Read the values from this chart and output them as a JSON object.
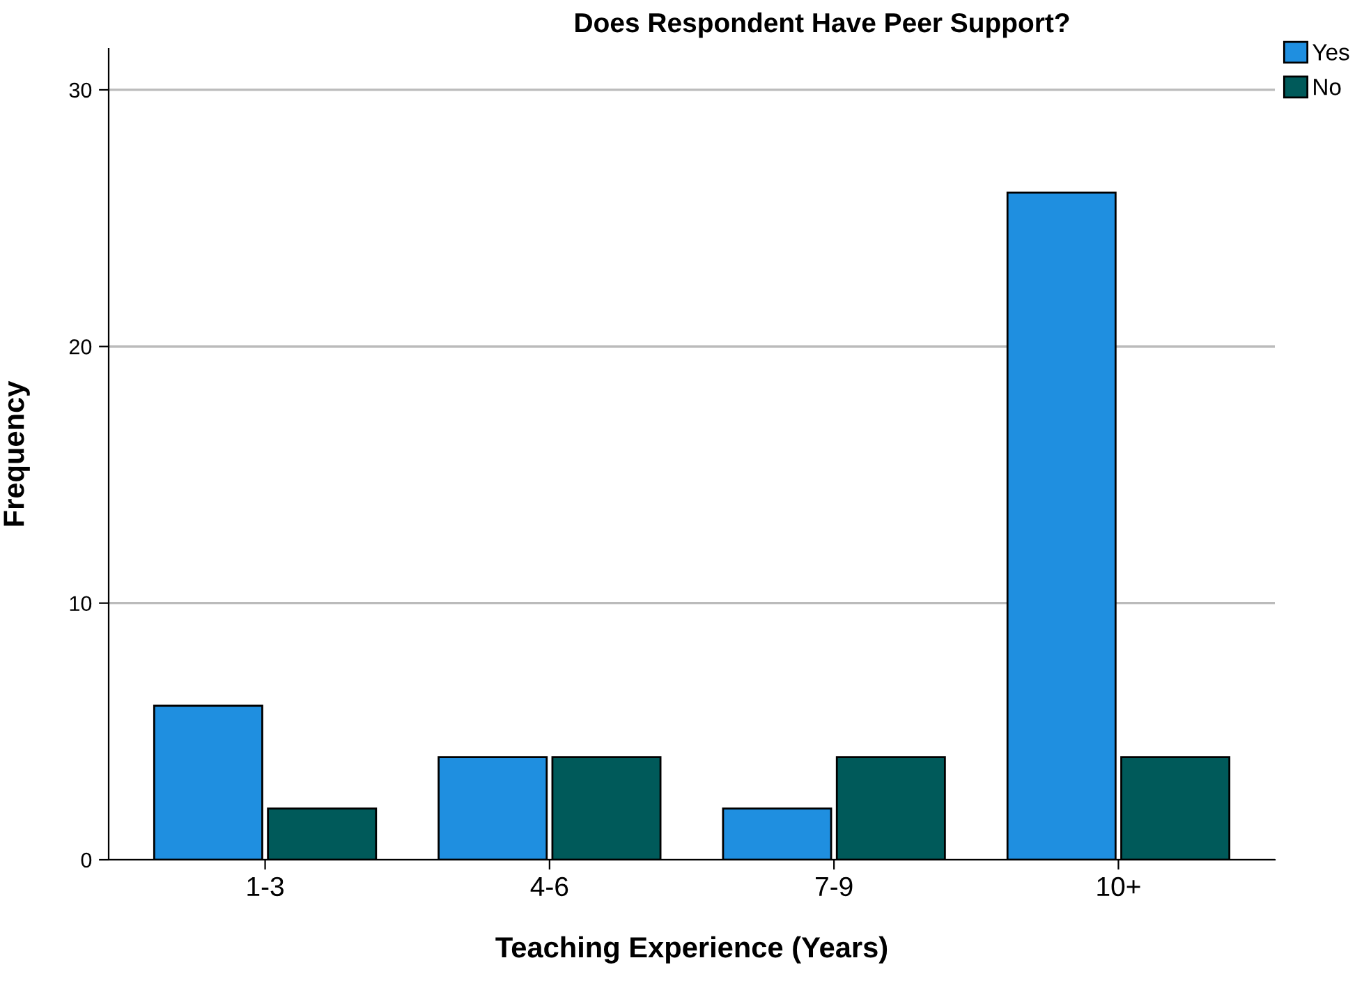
{
  "chart_data": {
    "type": "bar",
    "title": "Does Respondent Have Peer Support?",
    "xlabel": "Teaching Experience (Years)",
    "ylabel": "Frequency",
    "categories": [
      "1-3",
      "4-6",
      "7-9",
      "10+"
    ],
    "series": [
      {
        "name": "Yes",
        "color": "#1f8fe0",
        "values": [
          6,
          4,
          2,
          26
        ]
      },
      {
        "name": "No",
        "color": "#005a5a",
        "values": [
          2,
          4,
          4,
          4
        ]
      }
    ],
    "ylim": [
      0,
      31.6
    ],
    "yticks": [
      0,
      10,
      20,
      30
    ],
    "grid": "y",
    "legend": "top right"
  }
}
